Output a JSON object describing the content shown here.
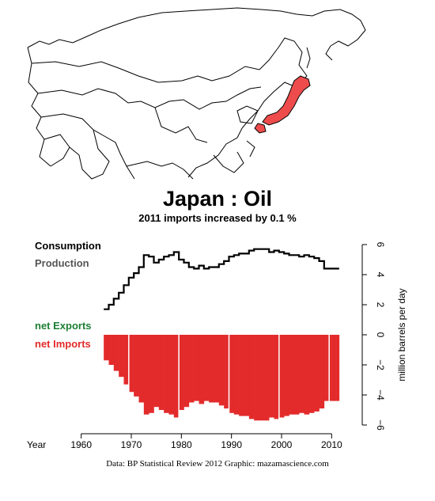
{
  "title": "Japan :  Oil",
  "subtitle": "2011 imports increased by 0.1 %",
  "legend": {
    "consumption": "Consumption",
    "production": "Production",
    "net_exports": "net Exports",
    "net_imports": "net Imports"
  },
  "footer": "Data: BP Statistical Review 2012    Graphic: mazamascience.com",
  "colors": {
    "consumption": "#000000",
    "production": "#555555",
    "net_exports": "#1e7f35",
    "net_imports": "#e32b2b",
    "highlight_country": "#ee4c4c"
  },
  "chart_data": {
    "type": "bar",
    "x_axis_label": "Year",
    "y_axis_label": "million barrels per day",
    "xlim": [
      1958,
      2012
    ],
    "ylim": [
      -6,
      6
    ],
    "x_ticks": [
      1960,
      1970,
      1980,
      1990,
      2000,
      2010
    ],
    "y_ticks": [
      6,
      4,
      2,
      0,
      -2,
      -4,
      -6
    ],
    "y_tick_labels": [
      "6",
      "4",
      "2",
      "0",
      "−2",
      "−4",
      "−6"
    ],
    "years": [
      1965,
      1966,
      1967,
      1968,
      1969,
      1970,
      1971,
      1972,
      1973,
      1974,
      1975,
      1976,
      1977,
      1978,
      1979,
      1980,
      1981,
      1982,
      1983,
      1984,
      1985,
      1986,
      1987,
      1988,
      1989,
      1990,
      1991,
      1992,
      1993,
      1994,
      1995,
      1996,
      1997,
      1998,
      1999,
      2000,
      2001,
      2002,
      2003,
      2004,
      2005,
      2006,
      2007,
      2008,
      2009,
      2010,
      2011
    ],
    "series": [
      {
        "name": "Consumption",
        "values": [
          1.7,
          2.0,
          2.4,
          2.8,
          3.3,
          3.8,
          4.1,
          4.5,
          5.3,
          5.2,
          4.8,
          5.0,
          5.2,
          5.3,
          5.5,
          5.0,
          4.8,
          4.5,
          4.4,
          4.6,
          4.4,
          4.5,
          4.5,
          4.7,
          4.9,
          5.2,
          5.3,
          5.4,
          5.4,
          5.6,
          5.7,
          5.7,
          5.7,
          5.5,
          5.6,
          5.5,
          5.4,
          5.3,
          5.3,
          5.2,
          5.3,
          5.2,
          5.1,
          4.9,
          4.4,
          4.4,
          4.4
        ]
      },
      {
        "name": "Production",
        "values": [
          0,
          0,
          0,
          0,
          0,
          0,
          0,
          0,
          0,
          0,
          0,
          0,
          0,
          0,
          0,
          0,
          0,
          0,
          0,
          0,
          0,
          0,
          0,
          0,
          0,
          0,
          0,
          0,
          0,
          0,
          0,
          0,
          0,
          0,
          0,
          0,
          0,
          0,
          0,
          0,
          0,
          0,
          0,
          0,
          0,
          0,
          0
        ]
      },
      {
        "name": "net Imports",
        "values": [
          -1.7,
          -2.0,
          -2.4,
          -2.8,
          -3.3,
          -3.8,
          -4.1,
          -4.5,
          -5.3,
          -5.2,
          -4.8,
          -5.0,
          -5.2,
          -5.3,
          -5.5,
          -5.0,
          -4.8,
          -4.5,
          -4.4,
          -4.6,
          -4.4,
          -4.5,
          -4.5,
          -4.7,
          -4.9,
          -5.2,
          -5.3,
          -5.4,
          -5.4,
          -5.6,
          -5.7,
          -5.7,
          -5.7,
          -5.5,
          -5.6,
          -5.5,
          -5.4,
          -5.3,
          -5.3,
          -5.2,
          -5.3,
          -5.2,
          -5.1,
          -4.9,
          -4.4,
          -4.4,
          -4.4
        ]
      }
    ]
  }
}
